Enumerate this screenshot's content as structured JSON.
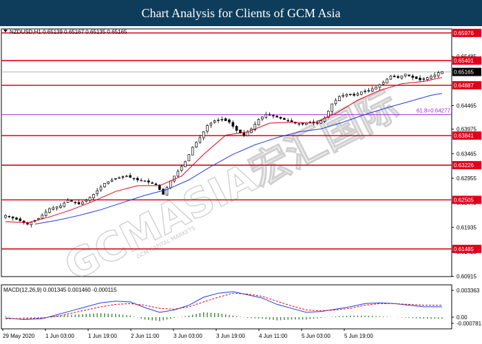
{
  "banner_title": "Chart Analysis for Clients of GCM Asia",
  "watermark": "GCMASIA宏汇国际",
  "watermark_small": "GCM CAPITAL MARKETS",
  "chart_data": [
    {
      "type": "candlestick",
      "instrument_header": "NZDUSD,H1  0.65139 0.65167 0.65135 0.65165",
      "current_price": 0.65165,
      "current_price_label": "0.65165",
      "ylim": [
        0.6091,
        0.6606
      ],
      "y_ticks": [
        {
          "value": 0.65485,
          "label": "0.65485"
        },
        {
          "value": 0.64465,
          "label": "0.64465"
        },
        {
          "value": 0.63975,
          "label": "0.63975"
        },
        {
          "value": 0.63465,
          "label": "0.63465"
        },
        {
          "value": 0.62955,
          "label": "0.62955"
        },
        {
          "value": 0.62445,
          "label": "0.62445"
        },
        {
          "value": 0.61935,
          "label": "0.61935"
        },
        {
          "value": 0.61425,
          "label": "0.61425"
        },
        {
          "value": 0.60915,
          "label": "0.60915"
        }
      ],
      "horizontal_levels": [
        {
          "value": 0.65976,
          "label": "0.65976"
        },
        {
          "value": 0.65401,
          "label": "0.65401"
        },
        {
          "value": 0.64887,
          "label": "0.64887"
        },
        {
          "value": 0.63841,
          "label": "0.63841"
        },
        {
          "value": 0.63226,
          "label": "0.63226"
        },
        {
          "value": 0.62505,
          "label": "0.62505"
        },
        {
          "value": 0.61485,
          "label": "0.61485"
        }
      ],
      "fibonacci_level": {
        "value": 0.64277,
        "label": "61.8=0.64277"
      },
      "x_labels": [
        "29 May 2020",
        "1 Jun 03:00",
        "1 Jun 19:00",
        "2 Jun 11:00",
        "3 Jun 03:00",
        "3 Jun 19:00",
        "4 Jun 11:00",
        "5 Jun 03:00",
        "5 Jun 19:00"
      ],
      "close_path": [
        [
          0,
          0.6218
        ],
        [
          3,
          0.621
        ],
        [
          6,
          0.62
        ],
        [
          9,
          0.6212
        ],
        [
          12,
          0.6232
        ],
        [
          15,
          0.6238
        ],
        [
          17,
          0.625
        ],
        [
          20,
          0.6242
        ],
        [
          22,
          0.625
        ],
        [
          24,
          0.6262
        ],
        [
          27,
          0.6285
        ],
        [
          30,
          0.6295
        ],
        [
          33,
          0.63
        ],
        [
          36,
          0.6292
        ],
        [
          38,
          0.629
        ],
        [
          41,
          0.6282
        ],
        [
          43,
          0.6262
        ],
        [
          45,
          0.629
        ],
        [
          47,
          0.631
        ],
        [
          49,
          0.633
        ],
        [
          51,
          0.636
        ],
        [
          53,
          0.638
        ],
        [
          55,
          0.6405
        ],
        [
          57,
          0.6415
        ],
        [
          59,
          0.6418
        ],
        [
          61,
          0.6412
        ],
        [
          63,
          0.6395
        ],
        [
          65,
          0.6385
        ],
        [
          67,
          0.6398
        ],
        [
          69,
          0.6418
        ],
        [
          71,
          0.6428
        ],
        [
          73,
          0.6425
        ],
        [
          75,
          0.642
        ],
        [
          77,
          0.6415
        ],
        [
          79,
          0.641
        ],
        [
          81,
          0.6408
        ],
        [
          83,
          0.6412
        ],
        [
          85,
          0.641
        ],
        [
          87,
          0.642
        ],
        [
          89,
          0.645
        ],
        [
          91,
          0.6465
        ],
        [
          93,
          0.647
        ],
        [
          95,
          0.6468
        ],
        [
          97,
          0.6475
        ],
        [
          99,
          0.6478
        ],
        [
          101,
          0.6485
        ],
        [
          103,
          0.6495
        ],
        [
          105,
          0.6508
        ],
        [
          107,
          0.6505
        ],
        [
          109,
          0.6512
        ],
        [
          111,
          0.6505
        ],
        [
          113,
          0.65
        ],
        [
          115,
          0.6505
        ],
        [
          117,
          0.651
        ],
        [
          118,
          0.6515
        ],
        [
          119,
          0.6517
        ]
      ],
      "ma_fast": [
        [
          0,
          0.6205
        ],
        [
          6,
          0.6203
        ],
        [
          12,
          0.6215
        ],
        [
          18,
          0.623
        ],
        [
          24,
          0.6248
        ],
        [
          30,
          0.6268
        ],
        [
          36,
          0.628
        ],
        [
          42,
          0.628
        ],
        [
          48,
          0.63
        ],
        [
          54,
          0.6345
        ],
        [
          60,
          0.6385
        ],
        [
          66,
          0.6392
        ],
        [
          72,
          0.641
        ],
        [
          78,
          0.6412
        ],
        [
          84,
          0.641
        ],
        [
          90,
          0.643
        ],
        [
          96,
          0.6458
        ],
        [
          102,
          0.6478
        ],
        [
          108,
          0.6492
        ],
        [
          114,
          0.6497
        ],
        [
          119,
          0.6505
        ]
      ],
      "ma_slow": [
        [
          8,
          0.62
        ],
        [
          14,
          0.6208
        ],
        [
          20,
          0.6218
        ],
        [
          26,
          0.623
        ],
        [
          32,
          0.6245
        ],
        [
          38,
          0.626
        ],
        [
          44,
          0.6272
        ],
        [
          50,
          0.6292
        ],
        [
          56,
          0.632
        ],
        [
          62,
          0.6345
        ],
        [
          68,
          0.6365
        ],
        [
          74,
          0.638
        ],
        [
          80,
          0.6392
        ],
        [
          86,
          0.6398
        ],
        [
          92,
          0.6412
        ],
        [
          98,
          0.6428
        ],
        [
          104,
          0.6442
        ],
        [
          110,
          0.6455
        ],
        [
          116,
          0.6468
        ],
        [
          119,
          0.6472
        ]
      ]
    },
    {
      "type": "line",
      "title": "MACD(12,26,9) 0.001345 0.001460 -0.000115",
      "ylim": [
        -0.000781,
        0.003363
      ],
      "y_ticks": [
        {
          "value": 0.003363,
          "label": "0.003363"
        },
        {
          "value": 0.0,
          "label": "0.00"
        },
        {
          "value": -0.000781,
          "label": "-0.000781"
        }
      ],
      "macd_line": [
        [
          0,
          -0.0001
        ],
        [
          5,
          -0.0003
        ],
        [
          10,
          -0.0002
        ],
        [
          14,
          0.0003
        ],
        [
          18,
          0.0008
        ],
        [
          22,
          0.0013
        ],
        [
          26,
          0.0018
        ],
        [
          30,
          0.002
        ],
        [
          34,
          0.0019
        ],
        [
          38,
          0.0012
        ],
        [
          42,
          0.0006
        ],
        [
          46,
          0.0009
        ],
        [
          50,
          0.0015
        ],
        [
          54,
          0.0025
        ],
        [
          58,
          0.003
        ],
        [
          62,
          0.0032
        ],
        [
          66,
          0.0028
        ],
        [
          70,
          0.0024
        ],
        [
          74,
          0.0016
        ],
        [
          78,
          0.0011
        ],
        [
          82,
          0.0006
        ],
        [
          86,
          0.0007
        ],
        [
          90,
          0.001
        ],
        [
          94,
          0.0013
        ],
        [
          98,
          0.0017
        ],
        [
          102,
          0.0018
        ],
        [
          106,
          0.0017
        ],
        [
          110,
          0.0015
        ],
        [
          114,
          0.0013
        ],
        [
          119,
          0.0013
        ]
      ],
      "signal_line": [
        [
          0,
          -0.0002
        ],
        [
          5,
          -0.0002
        ],
        [
          10,
          -0.0001
        ],
        [
          14,
          0.0001
        ],
        [
          18,
          0.0005
        ],
        [
          22,
          0.0009
        ],
        [
          26,
          0.0013
        ],
        [
          30,
          0.0016
        ],
        [
          34,
          0.0017
        ],
        [
          38,
          0.0015
        ],
        [
          42,
          0.0011
        ],
        [
          46,
          0.001
        ],
        [
          50,
          0.0013
        ],
        [
          54,
          0.0019
        ],
        [
          58,
          0.0025
        ],
        [
          62,
          0.003
        ],
        [
          66,
          0.0029
        ],
        [
          70,
          0.0026
        ],
        [
          74,
          0.002
        ],
        [
          78,
          0.0014
        ],
        [
          82,
          0.0009
        ],
        [
          86,
          0.0008
        ],
        [
          90,
          0.0009
        ],
        [
          94,
          0.0011
        ],
        [
          98,
          0.0015
        ],
        [
          102,
          0.0017
        ],
        [
          106,
          0.0017
        ],
        [
          110,
          0.0016
        ],
        [
          114,
          0.0015
        ],
        [
          119,
          0.0015
        ]
      ]
    }
  ]
}
